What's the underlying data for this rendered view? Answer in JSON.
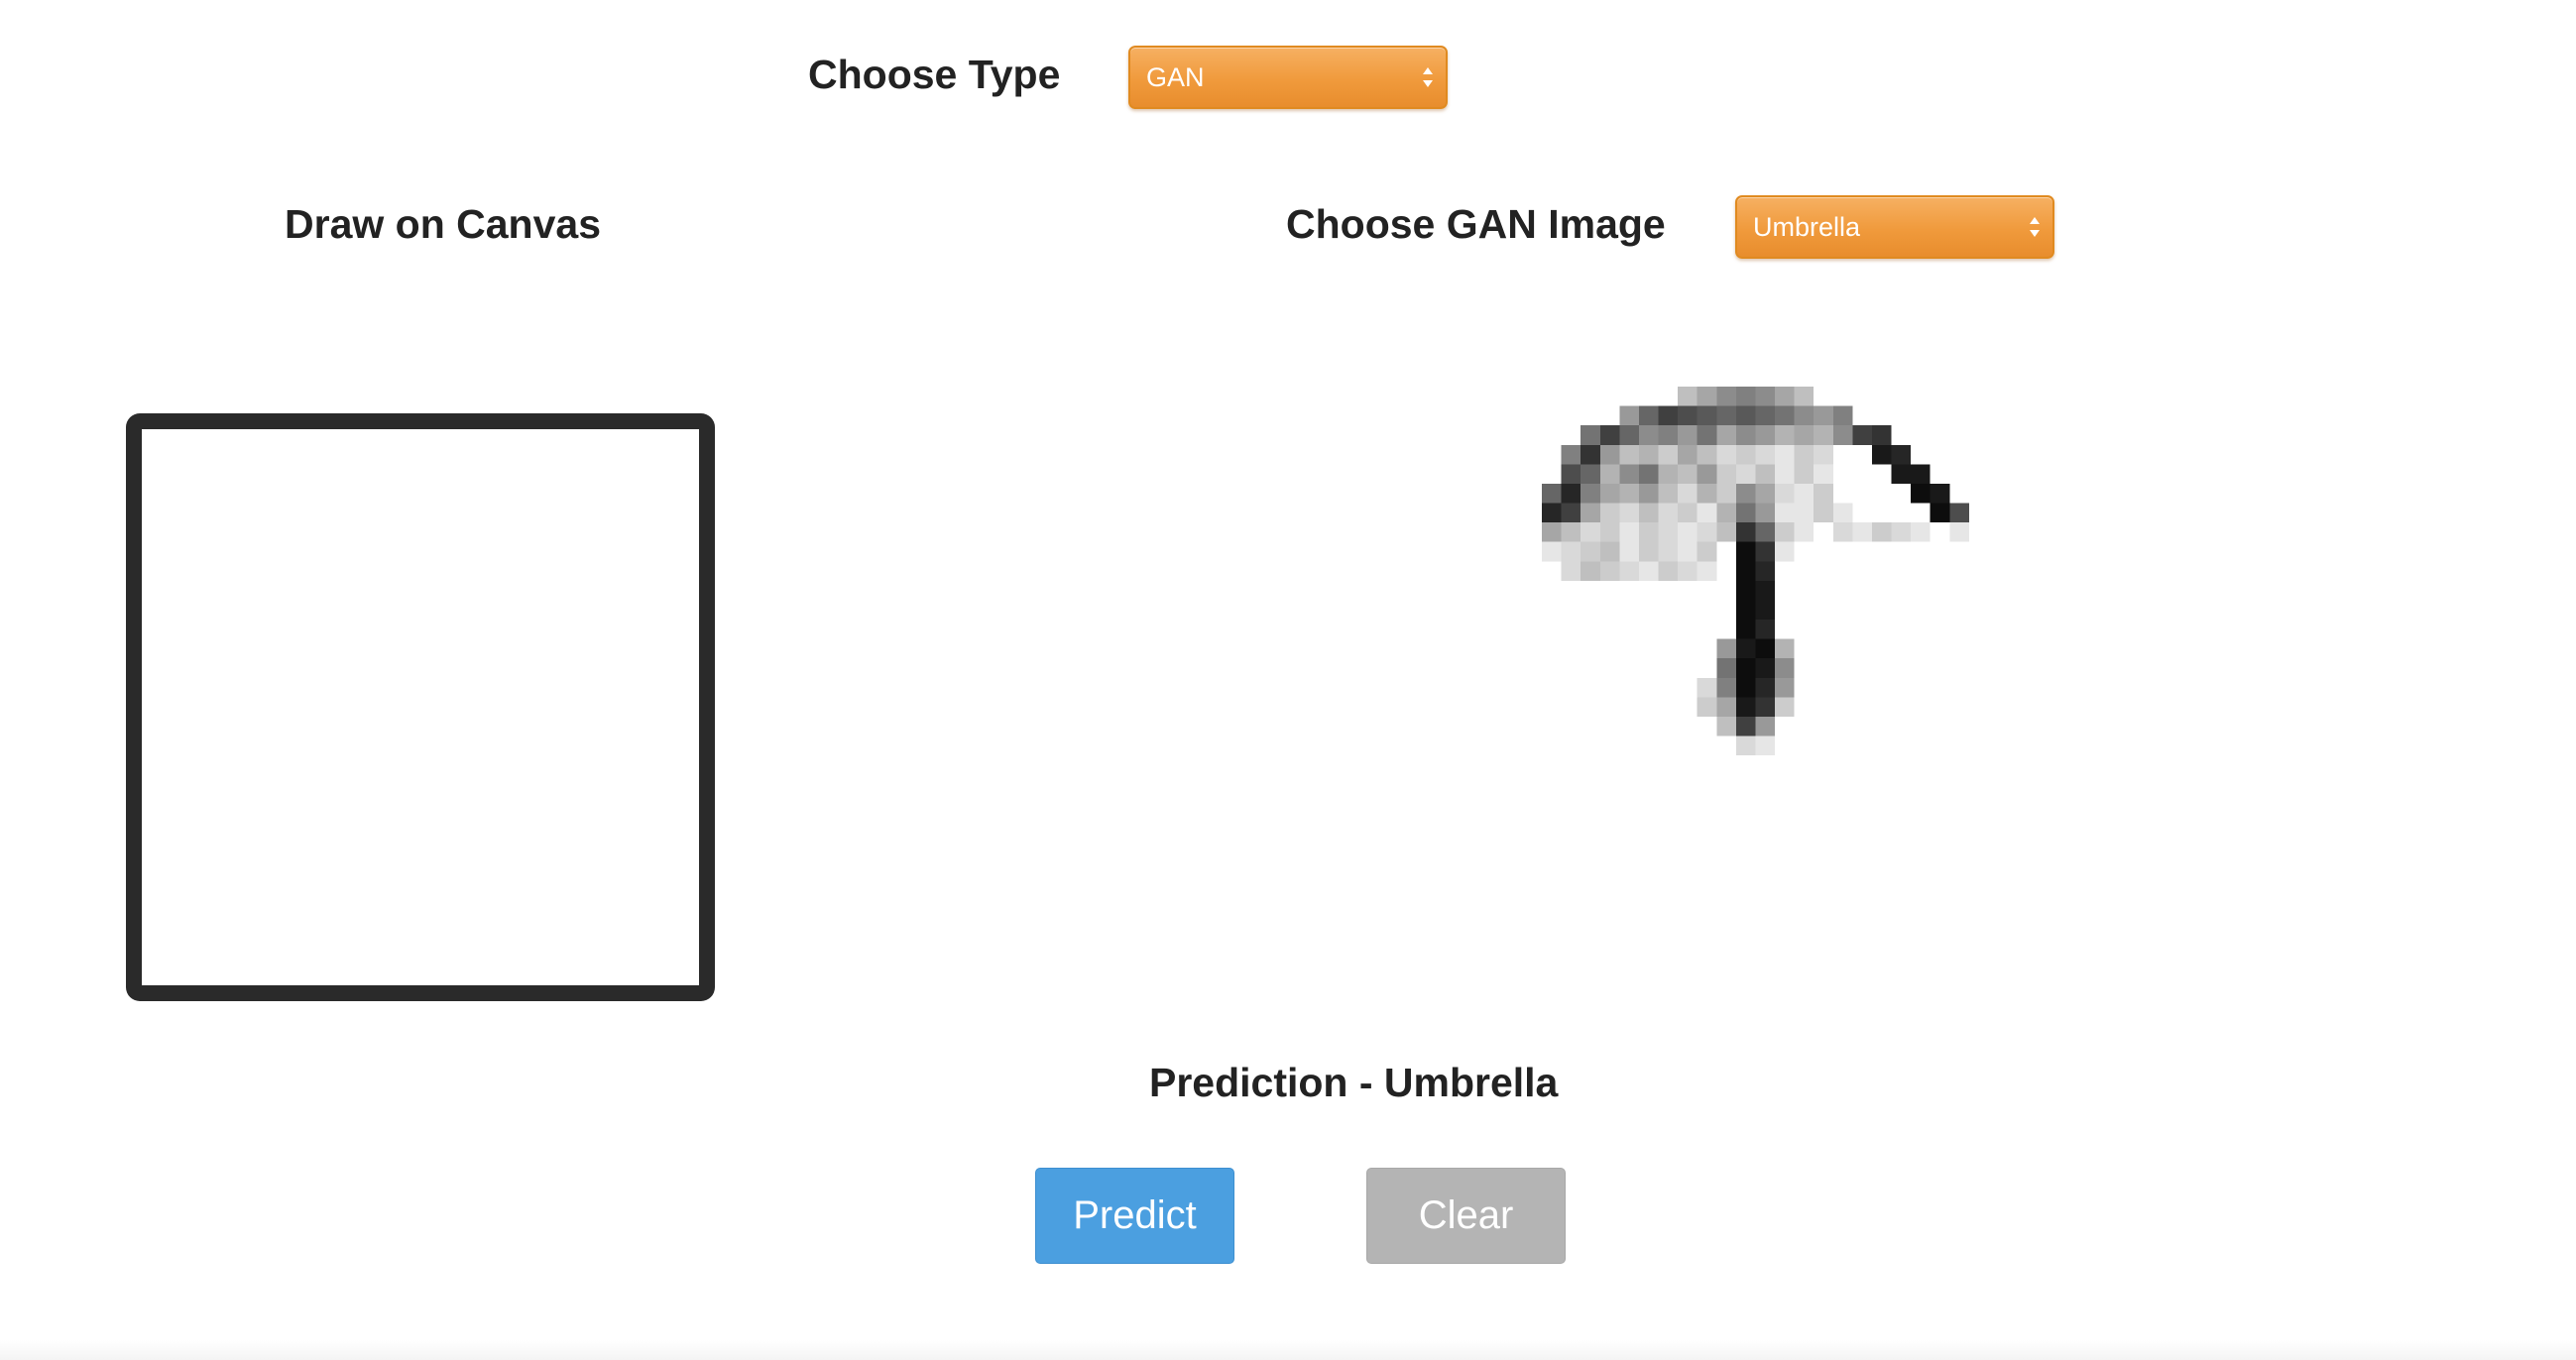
{
  "type_selector": {
    "label": "Choose Type",
    "selected": "GAN"
  },
  "canvas_section": {
    "label": "Draw on Canvas"
  },
  "gan_selector": {
    "label": "Choose GAN Image",
    "selected": "Umbrella"
  },
  "gan_image": {
    "icon": "umbrella-sketch-image"
  },
  "prediction": {
    "text": "Prediction - Umbrella"
  },
  "buttons": {
    "predict": "Predict",
    "clear": "Clear"
  },
  "colors": {
    "select_orange": "#f09a3c",
    "predict_blue": "#4b9fe0",
    "clear_gray": "#b4b4b4",
    "canvas_border": "#2a2a2a"
  }
}
